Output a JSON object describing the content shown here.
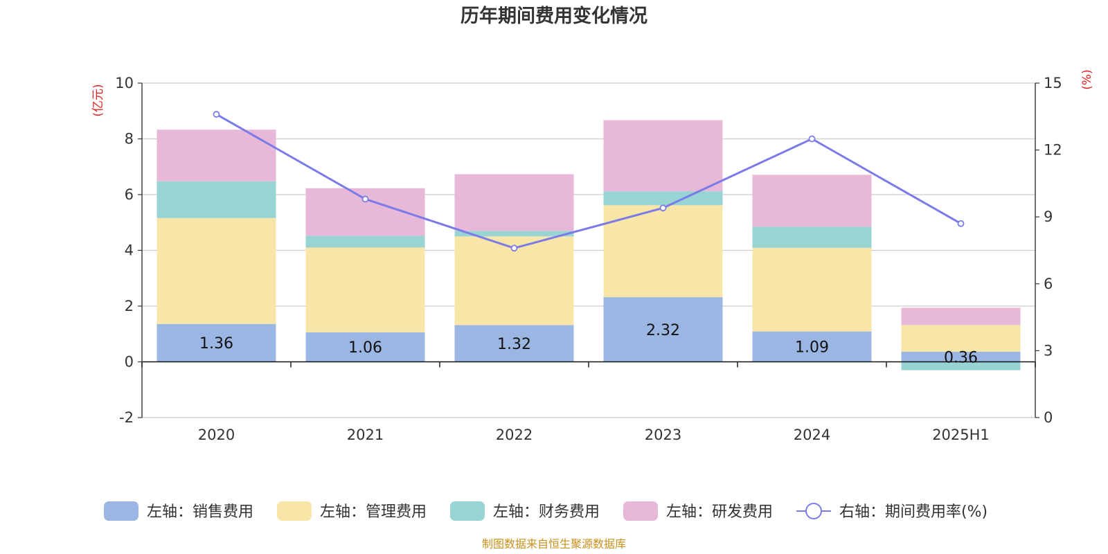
{
  "chart_data": {
    "type": "bar",
    "title": "历年期间费用变化情况",
    "categories": [
      "2020",
      "2021",
      "2022",
      "2023",
      "2024",
      "2025H1"
    ],
    "left_axis": {
      "unit": "(亿元)",
      "ylim": [
        -2,
        10
      ],
      "ticks": [
        -2,
        0,
        2,
        4,
        6,
        8,
        10
      ]
    },
    "right_axis": {
      "unit": "(%)",
      "ylim": [
        0,
        15
      ],
      "ticks": [
        0,
        3,
        6,
        9,
        12,
        15
      ]
    },
    "grid": true,
    "legend_position": "bottom",
    "series": [
      {
        "name": "左轴：销售费用",
        "type": "bar",
        "axis": "left",
        "color": "#9bb6e2",
        "values": [
          1.36,
          1.06,
          1.32,
          2.32,
          1.09,
          0.36
        ],
        "labels": [
          "1.36",
          "1.06",
          "1.32",
          "2.32",
          "1.09",
          "0.36"
        ]
      },
      {
        "name": "左轴：管理费用",
        "type": "bar",
        "axis": "left",
        "color": "#f8e6a8",
        "values": [
          3.8,
          3.04,
          3.18,
          3.3,
          3.0,
          0.96
        ]
      },
      {
        "name": "左轴：财务费用",
        "type": "bar",
        "axis": "left",
        "color": "#98d4d4",
        "values": [
          1.32,
          0.42,
          0.2,
          0.5,
          0.76,
          -0.3
        ]
      },
      {
        "name": "左轴：研发费用",
        "type": "bar",
        "axis": "left",
        "color": "#e8b8d8",
        "values": [
          1.85,
          1.71,
          2.03,
          2.55,
          1.86,
          0.62
        ]
      },
      {
        "name": "右轴：期间费用率(%)",
        "type": "line",
        "axis": "right",
        "color": "#7b7be8",
        "values": [
          13.6,
          9.8,
          7.6,
          9.4,
          12.5,
          8.7
        ]
      }
    ]
  },
  "source_note": "制图数据来自恒生聚源数据库"
}
